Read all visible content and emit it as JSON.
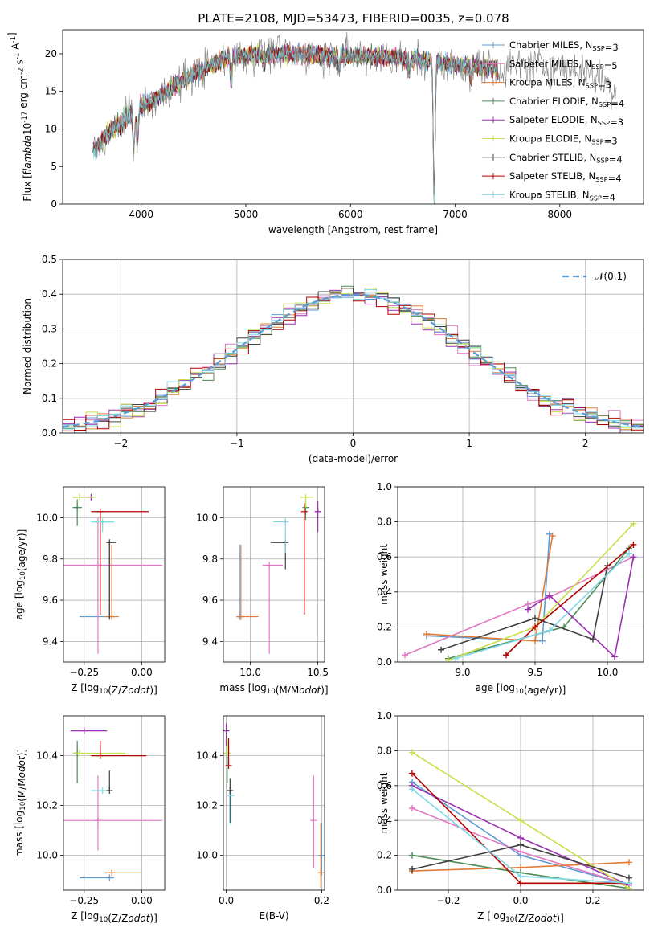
{
  "figure_title": "PLATE=2108, MJD=53473, FIBERID=0035, z=0.078",
  "models": [
    {
      "label": "Chabrier MILES, N$_{SSP}$=3",
      "base": "Chabrier MILES, N",
      "sub": "SSP",
      "tail": "=3",
      "color": "#5b9bd5"
    },
    {
      "label": "Salpeter MILES, N$_{SSP}$=5",
      "base": "Salpeter MILES, N",
      "sub": "SSP",
      "tail": "=5",
      "color": "#e377c2"
    },
    {
      "label": "Kroupa MILES, N$_{SSP}$=3",
      "base": "Kroupa MILES, N",
      "sub": "SSP",
      "tail": "=3",
      "color": "#e07b39"
    },
    {
      "label": "Chabrier ELODIE, N$_{SSP}$=4",
      "base": "Chabrier ELODIE, N",
      "sub": "SSP",
      "tail": "=4",
      "color": "#4e8a55"
    },
    {
      "label": "Salpeter ELODIE, N$_{SSP}$=3",
      "base": "Salpeter ELODIE, N",
      "sub": "SSP",
      "tail": "=3",
      "color": "#9b30b0"
    },
    {
      "label": "Kroupa ELODIE, N$_{SSP}$=3",
      "base": "Kroupa ELODIE, N",
      "sub": "SSP",
      "tail": "=3",
      "color": "#c8e04a"
    },
    {
      "label": "Chabrier STELIB, N$_{SSP}$=4",
      "base": "Chabrier STELIB, N",
      "sub": "SSP",
      "tail": "=4",
      "color": "#404040"
    },
    {
      "label": "Salpeter STELIB, N$_{SSP}$=4",
      "base": "Salpeter STELIB, N",
      "sub": "SSP",
      "tail": "=4",
      "color": "#b30000"
    },
    {
      "label": "Kroupa STELIB, N$_{SSP}$=4",
      "base": "Kroupa STELIB, N",
      "sub": "SSP",
      "tail": "=4",
      "color": "#7fd8e8"
    }
  ],
  "chart_data": [
    {
      "id": "spectrum",
      "type": "line",
      "xlabel": "wavelength [Angstrom, rest frame]",
      "ylabel": "Flux [f$_\\lambda$10$^{-17}$ erg cm$^{-2}$ s$^{-1}$ A$^{-1}$]",
      "xlim": [
        3250,
        8800
      ],
      "ylim": [
        0,
        23.2
      ],
      "xticks": [
        4000,
        5000,
        6000,
        7000,
        8000
      ],
      "yticks": [
        0,
        5,
        10,
        15,
        20
      ],
      "data_line_color": "#808080",
      "data_range": [
        3530,
        8540
      ],
      "model_range": [
        3540,
        7410
      ],
      "continuum": [
        [
          3530,
          7.0
        ],
        [
          3700,
          9.5
        ],
        [
          3900,
          12.0
        ],
        [
          4000,
          13.0
        ],
        [
          4200,
          14.5
        ],
        [
          4400,
          16.5
        ],
        [
          4600,
          18.0
        ],
        [
          4800,
          19.5
        ],
        [
          5000,
          19.8
        ],
        [
          5400,
          20.0
        ],
        [
          5800,
          19.8
        ],
        [
          6200,
          19.7
        ],
        [
          6600,
          19.3
        ],
        [
          7000,
          18.5
        ],
        [
          7400,
          18.0
        ],
        [
          7600,
          18.5
        ],
        [
          8000,
          18.3
        ],
        [
          8300,
          17.5
        ],
        [
          8540,
          15.0
        ]
      ],
      "dips": [
        [
          3930,
          5.0
        ],
        [
          3965,
          4.0
        ],
        [
          4860,
          3.0
        ],
        [
          5175,
          1.5
        ],
        [
          5890,
          1.5
        ],
        [
          6563,
          2.0
        ],
        [
          6800,
          19.0
        ],
        [
          7150,
          2.0
        ]
      ],
      "legend_entries": 9
    },
    {
      "id": "residuals",
      "type": "step",
      "xlabel": "(data-model)/error",
      "ylabel": "Normed distribution",
      "xlim": [
        -2.5,
        2.5
      ],
      "ylim": [
        0,
        0.5
      ],
      "xticks": [
        -2,
        -1,
        0,
        1,
        2
      ],
      "xticklabels": [
        "−2",
        "−1",
        "0",
        "1",
        "2"
      ],
      "yticks": [
        0.0,
        0.1,
        0.2,
        0.3,
        0.4,
        0.5
      ],
      "yticklabels": [
        "0.0",
        "0.1",
        "0.2",
        "0.3",
        "0.4",
        "0.5"
      ],
      "bin_width": 0.1,
      "normal_curve": {
        "label": "$\\mathcal{N}(0,1)$",
        "mean": 0,
        "sd": 1,
        "color": "#5b9bd5",
        "dash": "8,5"
      },
      "legend_placement": "top-right"
    },
    {
      "id": "age-vs-z",
      "type": "errorbar",
      "xlabel": "Z [log$_{10}$(Z/Z$_\\odot$)]",
      "ylabel": "age  [log$_{10}$(age/yr)]",
      "xlim": [
        -0.34,
        0.1
      ],
      "ylim": [
        9.3,
        10.15
      ],
      "xticks": [
        -0.25,
        0.0
      ],
      "xticklabels": [
        "−0.25",
        "0.00"
      ],
      "yticks": [
        9.4,
        9.6,
        9.8,
        10.0
      ],
      "yticklabels": [
        "9.4",
        "9.6",
        "9.8",
        "10.0"
      ],
      "points": [
        {
          "x": -0.14,
          "y": 9.52,
          "xerr": [
            0.13,
            0.02
          ],
          "yerr": [
            0.0,
            0.35
          ]
        },
        {
          "x": -0.19,
          "y": 9.77,
          "xerr": [
            0.15,
            0.28
          ],
          "yerr": [
            0.43,
            0.23
          ]
        },
        {
          "x": -0.13,
          "y": 9.52,
          "xerr": [
            0.03,
            0.03
          ],
          "yerr": [
            0.0,
            0.35
          ]
        },
        {
          "x": -0.28,
          "y": 10.05,
          "xerr": [
            0.02,
            0.02
          ],
          "yerr": [
            0.09,
            0.04
          ]
        },
        {
          "x": -0.22,
          "y": 10.1,
          "xerr": [
            0.08,
            0.0
          ],
          "yerr": [
            0.0,
            0.0
          ]
        },
        {
          "x": -0.27,
          "y": 10.1,
          "xerr": [
            0.03,
            0.07
          ],
          "yerr": [
            0.0,
            0.0
          ]
        },
        {
          "x": -0.14,
          "y": 9.88,
          "xerr": [
            0.0,
            0.03
          ],
          "yerr": [
            0.37,
            0.0
          ]
        },
        {
          "x": -0.18,
          "y": 10.03,
          "xerr": [
            0.04,
            0.21
          ],
          "yerr": [
            0.5,
            0.0
          ]
        },
        {
          "x": -0.17,
          "y": 9.98,
          "xerr": [
            0.05,
            0.05
          ],
          "yerr": [
            0.05,
            0.0
          ]
        }
      ]
    },
    {
      "id": "age-vs-mass",
      "type": "errorbar",
      "xlabel": "mass [log$_{10}$(M/M$_\\odot$)]",
      "ylabel": "",
      "xlim": [
        9.8,
        10.55
      ],
      "ylim": [
        9.3,
        10.15
      ],
      "xticks": [
        10.0,
        10.5
      ],
      "xticklabels": [
        "10.0",
        "10.5"
      ],
      "yticks": [
        9.4,
        9.6,
        9.8,
        10.0
      ],
      "yticklabels": [
        "9.4",
        "9.6",
        "9.8",
        "10.0"
      ],
      "points": [
        {
          "x": 9.92,
          "y": 9.52,
          "xerr": [
            0.0,
            0.0
          ],
          "yerr": [
            0.0,
            0.35
          ]
        },
        {
          "x": 10.14,
          "y": 9.77,
          "xerr": [
            0.05,
            0.1
          ],
          "yerr": [
            0.43,
            0.0
          ]
        },
        {
          "x": 9.93,
          "y": 9.52,
          "xerr": [
            0.03,
            0.13
          ],
          "yerr": [
            0.0,
            0.35
          ]
        },
        {
          "x": 10.41,
          "y": 10.05,
          "xerr": [
            0.0,
            0.0
          ],
          "yerr": [
            0.06,
            0.04
          ]
        },
        {
          "x": 10.5,
          "y": 10.03,
          "xerr": [
            0.02,
            0.02
          ],
          "yerr": [
            0.1,
            0.05
          ]
        },
        {
          "x": 10.41,
          "y": 10.1,
          "xerr": [
            0.04,
            0.06
          ],
          "yerr": [
            0.05,
            0.0
          ]
        },
        {
          "x": 10.26,
          "y": 9.88,
          "xerr": [
            0.11,
            0.0
          ],
          "yerr": [
            0.13,
            0.0
          ]
        },
        {
          "x": 10.4,
          "y": 10.03,
          "xerr": [
            0.0,
            0.0
          ],
          "yerr": [
            0.5,
            0.04
          ]
        },
        {
          "x": 10.26,
          "y": 9.98,
          "xerr": [
            0.09,
            0.0
          ],
          "yerr": [
            0.15,
            0.0
          ]
        }
      ]
    },
    {
      "id": "weight-vs-age",
      "type": "line",
      "xlabel": "age  [log$_{10}$(age/yr)]",
      "ylabel": "mass weight",
      "xlim": [
        8.55,
        10.25
      ],
      "ylim": [
        0,
        1.0
      ],
      "xticks": [
        9.0,
        9.5,
        10.0
      ],
      "xticklabels": [
        "9.0",
        "9.5",
        "10.0"
      ],
      "yticks": [
        0.0,
        0.2,
        0.4,
        0.6,
        0.8,
        1.0
      ],
      "yticklabels": [
        "0.0",
        "0.2",
        "0.4",
        "0.6",
        "0.8",
        "1.0"
      ],
      "series": [
        {
          "x": [
            8.75,
            9.55,
            9.6
          ],
          "y": [
            0.15,
            0.12,
            0.73
          ]
        },
        {
          "x": [
            8.6,
            9.45,
            9.6,
            10.18
          ],
          "y": [
            0.04,
            0.33,
            0.37,
            0.6
          ]
        },
        {
          "x": [
            8.75,
            9.5,
            9.62
          ],
          "y": [
            0.16,
            0.12,
            0.72
          ]
        },
        {
          "x": [
            8.9,
            9.7,
            10.15
          ],
          "y": [
            0.02,
            0.2,
            0.65
          ]
        },
        {
          "x": [
            9.45,
            9.6,
            10.05,
            10.18
          ],
          "y": [
            0.3,
            0.38,
            0.03,
            0.6
          ]
        },
        {
          "x": [
            8.9,
            9.5,
            10.18
          ],
          "y": [
            0.01,
            0.2,
            0.79
          ]
        },
        {
          "x": [
            8.85,
            9.5,
            9.9,
            10.0
          ],
          "y": [
            0.07,
            0.25,
            0.13,
            0.55
          ]
        },
        {
          "x": [
            9.3,
            9.5,
            10.18
          ],
          "y": [
            0.04,
            0.2,
            0.67
          ]
        },
        {
          "x": [
            8.95,
            9.6,
            10.15
          ],
          "y": [
            0.02,
            0.18,
            0.62
          ]
        }
      ]
    },
    {
      "id": "mass-vs-z",
      "type": "errorbar",
      "xlabel": "Z [log$_{10}$(Z/Z$_\\odot$)]",
      "ylabel": "mass [log$_{10}$(M/M$_\\odot$)]",
      "xlim": [
        -0.34,
        0.1
      ],
      "ylim": [
        9.86,
        10.56
      ],
      "xticks": [
        -0.25,
        0.0
      ],
      "xticklabels": [
        "−0.25",
        "0.00"
      ],
      "yticks": [
        10.0,
        10.2,
        10.4
      ],
      "yticklabels": [
        "10.0",
        "10.2",
        "10.4"
      ],
      "points": [
        {
          "x": -0.14,
          "y": 9.91,
          "xerr": [
            0.13,
            0.02
          ],
          "yerr": [
            0.0,
            0.0
          ]
        },
        {
          "x": -0.19,
          "y": 10.14,
          "xerr": [
            0.15,
            0.28
          ],
          "yerr": [
            0.12,
            0.18
          ]
        },
        {
          "x": -0.13,
          "y": 9.93,
          "xerr": [
            0.03,
            0.13
          ],
          "yerr": [
            0.0,
            0.0
          ]
        },
        {
          "x": -0.28,
          "y": 10.41,
          "xerr": [
            0.02,
            0.0
          ],
          "yerr": [
            0.12,
            0.05
          ]
        },
        {
          "x": -0.25,
          "y": 10.5,
          "xerr": [
            0.06,
            0.1
          ],
          "yerr": [
            0.0,
            0.0
          ]
        },
        {
          "x": -0.27,
          "y": 10.41,
          "xerr": [
            0.03,
            0.2
          ],
          "yerr": [
            0.0,
            0.0
          ]
        },
        {
          "x": -0.14,
          "y": 10.26,
          "xerr": [
            0.0,
            0.0
          ],
          "yerr": [
            0.0,
            0.08
          ]
        },
        {
          "x": -0.18,
          "y": 10.4,
          "xerr": [
            0.04,
            0.2
          ],
          "yerr": [
            0.0,
            0.06
          ]
        },
        {
          "x": -0.17,
          "y": 10.26,
          "xerr": [
            0.05,
            0.0
          ],
          "yerr": [
            0.0,
            0.0
          ]
        }
      ]
    },
    {
      "id": "mass-vs-ebv",
      "type": "errorbar",
      "xlabel": "E(B-V)",
      "ylabel": "",
      "xlim": [
        -0.006,
        0.206
      ],
      "ylim": [
        9.86,
        10.56
      ],
      "xticks": [
        0.0,
        0.2
      ],
      "xticklabels": [
        "0.0",
        "0.2"
      ],
      "yticks": [
        10.0,
        10.2,
        10.4
      ],
      "yticklabels": [
        "10.0",
        "10.2",
        "10.4"
      ],
      "points": [
        {
          "x": 0.2,
          "y": 10.0,
          "xerr": [
            0,
            0
          ],
          "yerr": [
            0.08,
            0.13
          ]
        },
        {
          "x": 0.183,
          "y": 10.14,
          "xerr": [
            0,
            0
          ],
          "yerr": [
            0.19,
            0.18
          ]
        },
        {
          "x": 0.198,
          "y": 9.93,
          "xerr": [
            0,
            0
          ],
          "yerr": [
            0.06,
            0.2
          ]
        },
        {
          "x": 0.002,
          "y": 10.41,
          "xerr": [
            0,
            0
          ],
          "yerr": [
            0.12,
            0.05
          ]
        },
        {
          "x": 0.0,
          "y": 10.5,
          "xerr": [
            0,
            0
          ],
          "yerr": [
            0.06,
            0.03
          ]
        },
        {
          "x": 0.002,
          "y": 10.41,
          "xerr": [
            0,
            0
          ],
          "yerr": [
            0.0,
            0.06
          ]
        },
        {
          "x": 0.008,
          "y": 10.26,
          "xerr": [
            0,
            0
          ],
          "yerr": [
            0.13,
            0.05
          ]
        },
        {
          "x": 0.005,
          "y": 10.36,
          "xerr": [
            0,
            0
          ],
          "yerr": [
            0.0,
            0.11
          ]
        },
        {
          "x": 0.01,
          "y": 10.24,
          "xerr": [
            0,
            0
          ],
          "yerr": [
            0.12,
            0.0
          ]
        }
      ]
    },
    {
      "id": "weight-vs-z",
      "type": "line",
      "xlabel": "Z [log$_{10}$(Z/Z$_\\odot$)]",
      "ylabel": "mass weight",
      "xlim": [
        -0.34,
        0.34
      ],
      "ylim": [
        0,
        1.0
      ],
      "xticks": [
        -0.2,
        0.0,
        0.2
      ],
      "xticklabels": [
        "−0.2",
        "0.0",
        "0.2"
      ],
      "yticks": [
        0.0,
        0.2,
        0.4,
        0.6,
        0.8,
        1.0
      ],
      "yticklabels": [
        "0.0",
        "0.2",
        "0.4",
        "0.6",
        "0.8",
        "1.0"
      ],
      "series": [
        {
          "x": [
            -0.3,
            0.0,
            0.3
          ],
          "y": [
            0.62,
            0.2,
            0.03
          ]
        },
        {
          "x": [
            -0.3,
            0.0,
            0.3
          ],
          "y": [
            0.47,
            0.22,
            0.03
          ]
        },
        {
          "x": [
            -0.3,
            0.0,
            0.3
          ],
          "y": [
            0.11,
            0.13,
            0.16
          ]
        },
        {
          "x": [
            -0.3,
            0.0,
            0.3
          ],
          "y": [
            0.2,
            0.1,
            0.01
          ]
        },
        {
          "x": [
            -0.3,
            0.0,
            0.3
          ],
          "y": [
            0.6,
            0.3,
            0.03
          ]
        },
        {
          "x": [
            -0.3,
            0.0,
            0.3
          ],
          "y": [
            0.79,
            0.4,
            0.01
          ]
        },
        {
          "x": [
            -0.3,
            0.0,
            0.3
          ],
          "y": [
            0.12,
            0.26,
            0.07
          ]
        },
        {
          "x": [
            -0.3,
            0.0,
            0.3
          ],
          "y": [
            0.67,
            0.04,
            0.04
          ]
        },
        {
          "x": [
            -0.3,
            0.0,
            0.3
          ],
          "y": [
            0.58,
            0.08,
            0.04
          ]
        }
      ]
    }
  ]
}
